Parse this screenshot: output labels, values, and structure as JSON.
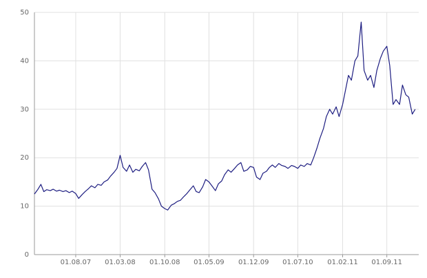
{
  "chart_data": {
    "type": "line",
    "x": [
      "15.01.07",
      "01.02.07",
      "15.02.07",
      "01.03.07",
      "15.03.07",
      "01.04.07",
      "15.04.07",
      "01.05.07",
      "15.05.07",
      "01.06.07",
      "15.06.07",
      "01.07.07",
      "15.07.07",
      "01.08.07",
      "15.08.07",
      "01.09.07",
      "15.09.07",
      "01.10.07",
      "15.10.07",
      "01.11.07",
      "15.11.07",
      "01.12.07",
      "15.12.07",
      "01.01.08",
      "15.01.08",
      "01.02.08",
      "15.02.08",
      "01.03.08",
      "15.03.08",
      "01.04.08",
      "15.04.08",
      "01.05.08",
      "15.05.08",
      "01.06.08",
      "15.06.08",
      "01.07.08",
      "15.07.08",
      "01.08.08",
      "15.08.08",
      "01.09.08",
      "15.09.08",
      "01.10.08",
      "15.10.08",
      "01.11.08",
      "15.11.08",
      "01.12.08",
      "15.12.08",
      "01.01.09",
      "15.01.09",
      "01.02.09",
      "15.02.09",
      "01.03.09",
      "15.03.09",
      "01.04.09",
      "15.04.09",
      "01.05.09",
      "15.05.09",
      "01.06.09",
      "15.06.09",
      "01.07.09",
      "15.07.09",
      "01.08.09",
      "15.08.09",
      "01.09.09",
      "15.09.09",
      "01.10.09",
      "15.10.09",
      "01.11.09",
      "15.11.09",
      "01.12.09",
      "15.12.09",
      "01.01.10",
      "15.01.10",
      "01.02.10",
      "15.02.10",
      "01.03.10",
      "15.03.10",
      "01.04.10",
      "15.04.10",
      "01.05.10",
      "15.05.10",
      "01.06.10",
      "15.06.10",
      "01.07.10",
      "15.07.10",
      "01.08.10",
      "15.08.10",
      "01.09.10",
      "15.09.10",
      "01.10.10",
      "15.10.10",
      "01.11.10",
      "15.11.10",
      "01.12.10",
      "15.12.10",
      "01.01.11",
      "15.01.11",
      "01.02.11",
      "15.02.11",
      "01.03.11",
      "15.03.11",
      "01.04.11",
      "15.04.11",
      "01.05.11",
      "15.05.11",
      "01.06.11",
      "15.06.11",
      "01.07.11",
      "15.07.11",
      "01.08.11",
      "15.08.11",
      "01.09.11",
      "15.09.11",
      "01.10.11",
      "15.10.11",
      "01.11.11",
      "15.11.11",
      "01.12.11",
      "15.12.11",
      "01.01.12",
      "15.01.12"
    ],
    "series": [
      {
        "color": "#1c1c80",
        "values": [
          12.5,
          13.5,
          14.5,
          13,
          13.4,
          13.2,
          13.5,
          13.1,
          13.3,
          13,
          13.2,
          12.8,
          13.1,
          12.6,
          11.6,
          12.4,
          13,
          13.6,
          14.2,
          13.8,
          14.5,
          14.3,
          15,
          15.4,
          16.2,
          17,
          17.8,
          20.5,
          18,
          17.2,
          18.5,
          17,
          17.6,
          17.3,
          18.2,
          19,
          17.5,
          13.5,
          12.8,
          11.5,
          10,
          9.5,
          9.2,
          10.2,
          10.5,
          11,
          11.2,
          12,
          12.6,
          13.5,
          14.2,
          13,
          12.8,
          14,
          15.5,
          15,
          14.2,
          13.2,
          14.6,
          15.2,
          16.5,
          17.5,
          17,
          17.8,
          18.5,
          19,
          17.2,
          17.5,
          18.2,
          18,
          16,
          15.5,
          16.8,
          17.2,
          18,
          18.5,
          18,
          18.8,
          18.4,
          18.2,
          17.8,
          18.4,
          18.2,
          17.8,
          18.5,
          18.2,
          18.8,
          18.5,
          20,
          22,
          24,
          26,
          28.5,
          30,
          29,
          30.5,
          28.5,
          31,
          34,
          37,
          36,
          40,
          41,
          48,
          38,
          36,
          37,
          34.5,
          38,
          40.5,
          42,
          43,
          39,
          31,
          32,
          31,
          35,
          33,
          32.5,
          29,
          30
        ]
      }
    ],
    "xlim": [
      "15.01.07",
      "01.02.12"
    ],
    "xticks": [
      "01.08.07",
      "01.03.08",
      "01.10.08",
      "01.05.09",
      "01.12.09",
      "01.07.10",
      "01.02.11",
      "01.09.11"
    ],
    "ylim": [
      0,
      50
    ],
    "yticks": [
      0,
      10,
      20,
      30,
      40,
      50
    ],
    "grid": true
  }
}
